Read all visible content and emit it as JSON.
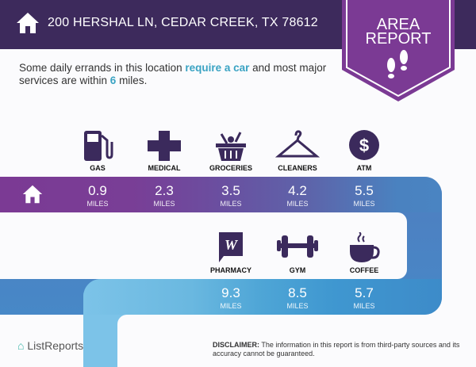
{
  "header": {
    "address": "200 HERSHAL LN, CEDAR CREEK, TX 78612",
    "icon": "home-icon"
  },
  "badge": {
    "line1": "AREA",
    "line2": "REPORT",
    "icon": "footprints-icon",
    "color": "#7b3a94"
  },
  "intro": {
    "pre": "Some daily errands in this location ",
    "highlight1": "require a car",
    "mid": " and most major services are within ",
    "highlight2": "6",
    "post": " miles."
  },
  "row1": [
    {
      "label": "GAS",
      "value": "0.9",
      "unit": "MILES",
      "icon": "gas-pump-icon"
    },
    {
      "label": "MEDICAL",
      "value": "2.3",
      "unit": "MILES",
      "icon": "medical-cross-icon"
    },
    {
      "label": "GROCERIES",
      "value": "3.5",
      "unit": "MILES",
      "icon": "grocery-basket-icon"
    },
    {
      "label": "CLEANERS",
      "value": "4.2",
      "unit": "MILES",
      "icon": "hanger-icon"
    },
    {
      "label": "ATM",
      "value": "5.5",
      "unit": "MILES",
      "icon": "dollar-icon"
    }
  ],
  "row2": [
    {
      "label": "PHARMACY",
      "value": "9.3",
      "unit": "MILES",
      "icon": "pharmacy-icon"
    },
    {
      "label": "GYM",
      "value": "8.5",
      "unit": "MILES",
      "icon": "dumbbell-icon"
    },
    {
      "label": "COFFEE",
      "value": "5.7",
      "unit": "MILES",
      "icon": "coffee-cup-icon"
    }
  ],
  "footer": {
    "logo": "ListReports",
    "disclaimer_label": "DISCLAIMER:",
    "disclaimer": " The information in this report is from third-party sources and its accuracy cannot be guaranteed."
  },
  "colors": {
    "header": "#3d2a5c",
    "accent": "#3aa3c3",
    "icon": "#3b2a5c"
  }
}
